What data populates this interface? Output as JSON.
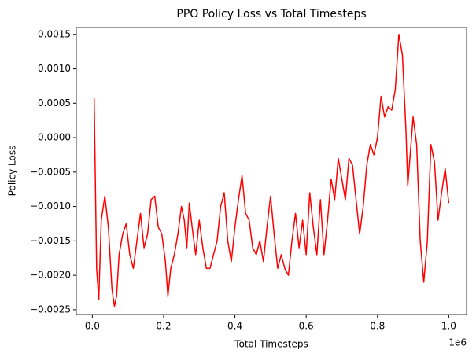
{
  "chart_data": {
    "type": "line",
    "title": "PPO Policy Loss vs Total Timesteps",
    "x_label": "Total Timesteps",
    "y_label": "Policy Loss",
    "x_offset_label": "1e6",
    "xlim": [
      -45000,
      1050000
    ],
    "ylim": [
      -0.00257,
      0.0016
    ],
    "xticks": [
      {
        "value": 0,
        "label": "0.0"
      },
      {
        "value": 200000,
        "label": "0.2"
      },
      {
        "value": 400000,
        "label": "0.4"
      },
      {
        "value": 600000,
        "label": "0.6"
      },
      {
        "value": 800000,
        "label": "0.8"
      },
      {
        "value": 1000000,
        "label": "1.0"
      }
    ],
    "yticks": [
      {
        "value": -0.0025,
        "label": "−0.0025"
      },
      {
        "value": -0.002,
        "label": "−0.0020"
      },
      {
        "value": -0.0015,
        "label": "−0.0015"
      },
      {
        "value": -0.001,
        "label": "−0.0010"
      },
      {
        "value": -0.0005,
        "label": "−0.0005"
      },
      {
        "value": 0,
        "label": "0.0000"
      },
      {
        "value": 0.0005,
        "label": "0.0005"
      },
      {
        "value": 0.001,
        "label": "0.0010"
      },
      {
        "value": 0.0015,
        "label": "0.0015"
      }
    ],
    "grid": false,
    "x": [
      5000,
      12000,
      18000,
      25000,
      35000,
      45000,
      55000,
      62000,
      68000,
      75000,
      85000,
      95000,
      105000,
      115000,
      125000,
      135000,
      145000,
      155000,
      165000,
      175000,
      185000,
      195000,
      205000,
      212000,
      220000,
      230000,
      240000,
      250000,
      258000,
      265000,
      272000,
      280000,
      290000,
      300000,
      310000,
      320000,
      330000,
      340000,
      350000,
      360000,
      370000,
      380000,
      390000,
      400000,
      410000,
      420000,
      430000,
      440000,
      450000,
      460000,
      470000,
      480000,
      490000,
      500000,
      510000,
      520000,
      530000,
      540000,
      550000,
      560000,
      570000,
      580000,
      590000,
      600000,
      610000,
      620000,
      630000,
      640000,
      650000,
      660000,
      670000,
      680000,
      690000,
      700000,
      710000,
      720000,
      730000,
      740000,
      750000,
      760000,
      770000,
      780000,
      790000,
      800000,
      810000,
      820000,
      830000,
      840000,
      850000,
      860000,
      870000,
      880000,
      885000,
      900000,
      910000,
      920000,
      930000,
      940000,
      950000,
      960000,
      970000,
      980000,
      990000,
      1000000
    ],
    "series": [
      {
        "name": "Policy Loss",
        "color": "#ff0000",
        "values": [
          0.00057,
          -0.0019,
          -0.00235,
          -0.0012,
          -0.00085,
          -0.0013,
          -0.0022,
          -0.00245,
          -0.0023,
          -0.0017,
          -0.0014,
          -0.00125,
          -0.0017,
          -0.0019,
          -0.0015,
          -0.0011,
          -0.0016,
          -0.0014,
          -0.0009,
          -0.00085,
          -0.0013,
          -0.0014,
          -0.0018,
          -0.0023,
          -0.0019,
          -0.0017,
          -0.0014,
          -0.001,
          -0.0012,
          -0.0016,
          -0.00095,
          -0.0013,
          -0.0017,
          -0.0012,
          -0.0016,
          -0.0019,
          -0.0019,
          -0.0017,
          -0.0015,
          -0.001,
          -0.0008,
          -0.0015,
          -0.0018,
          -0.0013,
          -0.0009,
          -0.00055,
          -0.0011,
          -0.0012,
          -0.0016,
          -0.0017,
          -0.0015,
          -0.0018,
          -0.0013,
          -0.00085,
          -0.0014,
          -0.0019,
          -0.0017,
          -0.0019,
          -0.002,
          -0.0015,
          -0.0011,
          -0.0016,
          -0.0012,
          -0.0017,
          -0.0008,
          -0.0013,
          -0.0017,
          -0.0009,
          -0.0017,
          -0.0012,
          -0.0006,
          -0.0009,
          -0.0003,
          -0.0006,
          -0.0009,
          -0.0003,
          -0.0004,
          -0.0009,
          -0.0014,
          -0.001,
          -0.0004,
          -0.0001,
          -0.00025,
          0.0,
          0.0006,
          0.0003,
          0.00045,
          0.0004,
          0.0007,
          0.0015,
          0.0012,
          0.0001,
          -0.0007,
          0.0003,
          -0.0001,
          -0.0015,
          -0.0021,
          -0.0015,
          -0.0001,
          -0.00035,
          -0.0012,
          -0.0008,
          -0.00045,
          -0.00095
        ]
      }
    ]
  }
}
